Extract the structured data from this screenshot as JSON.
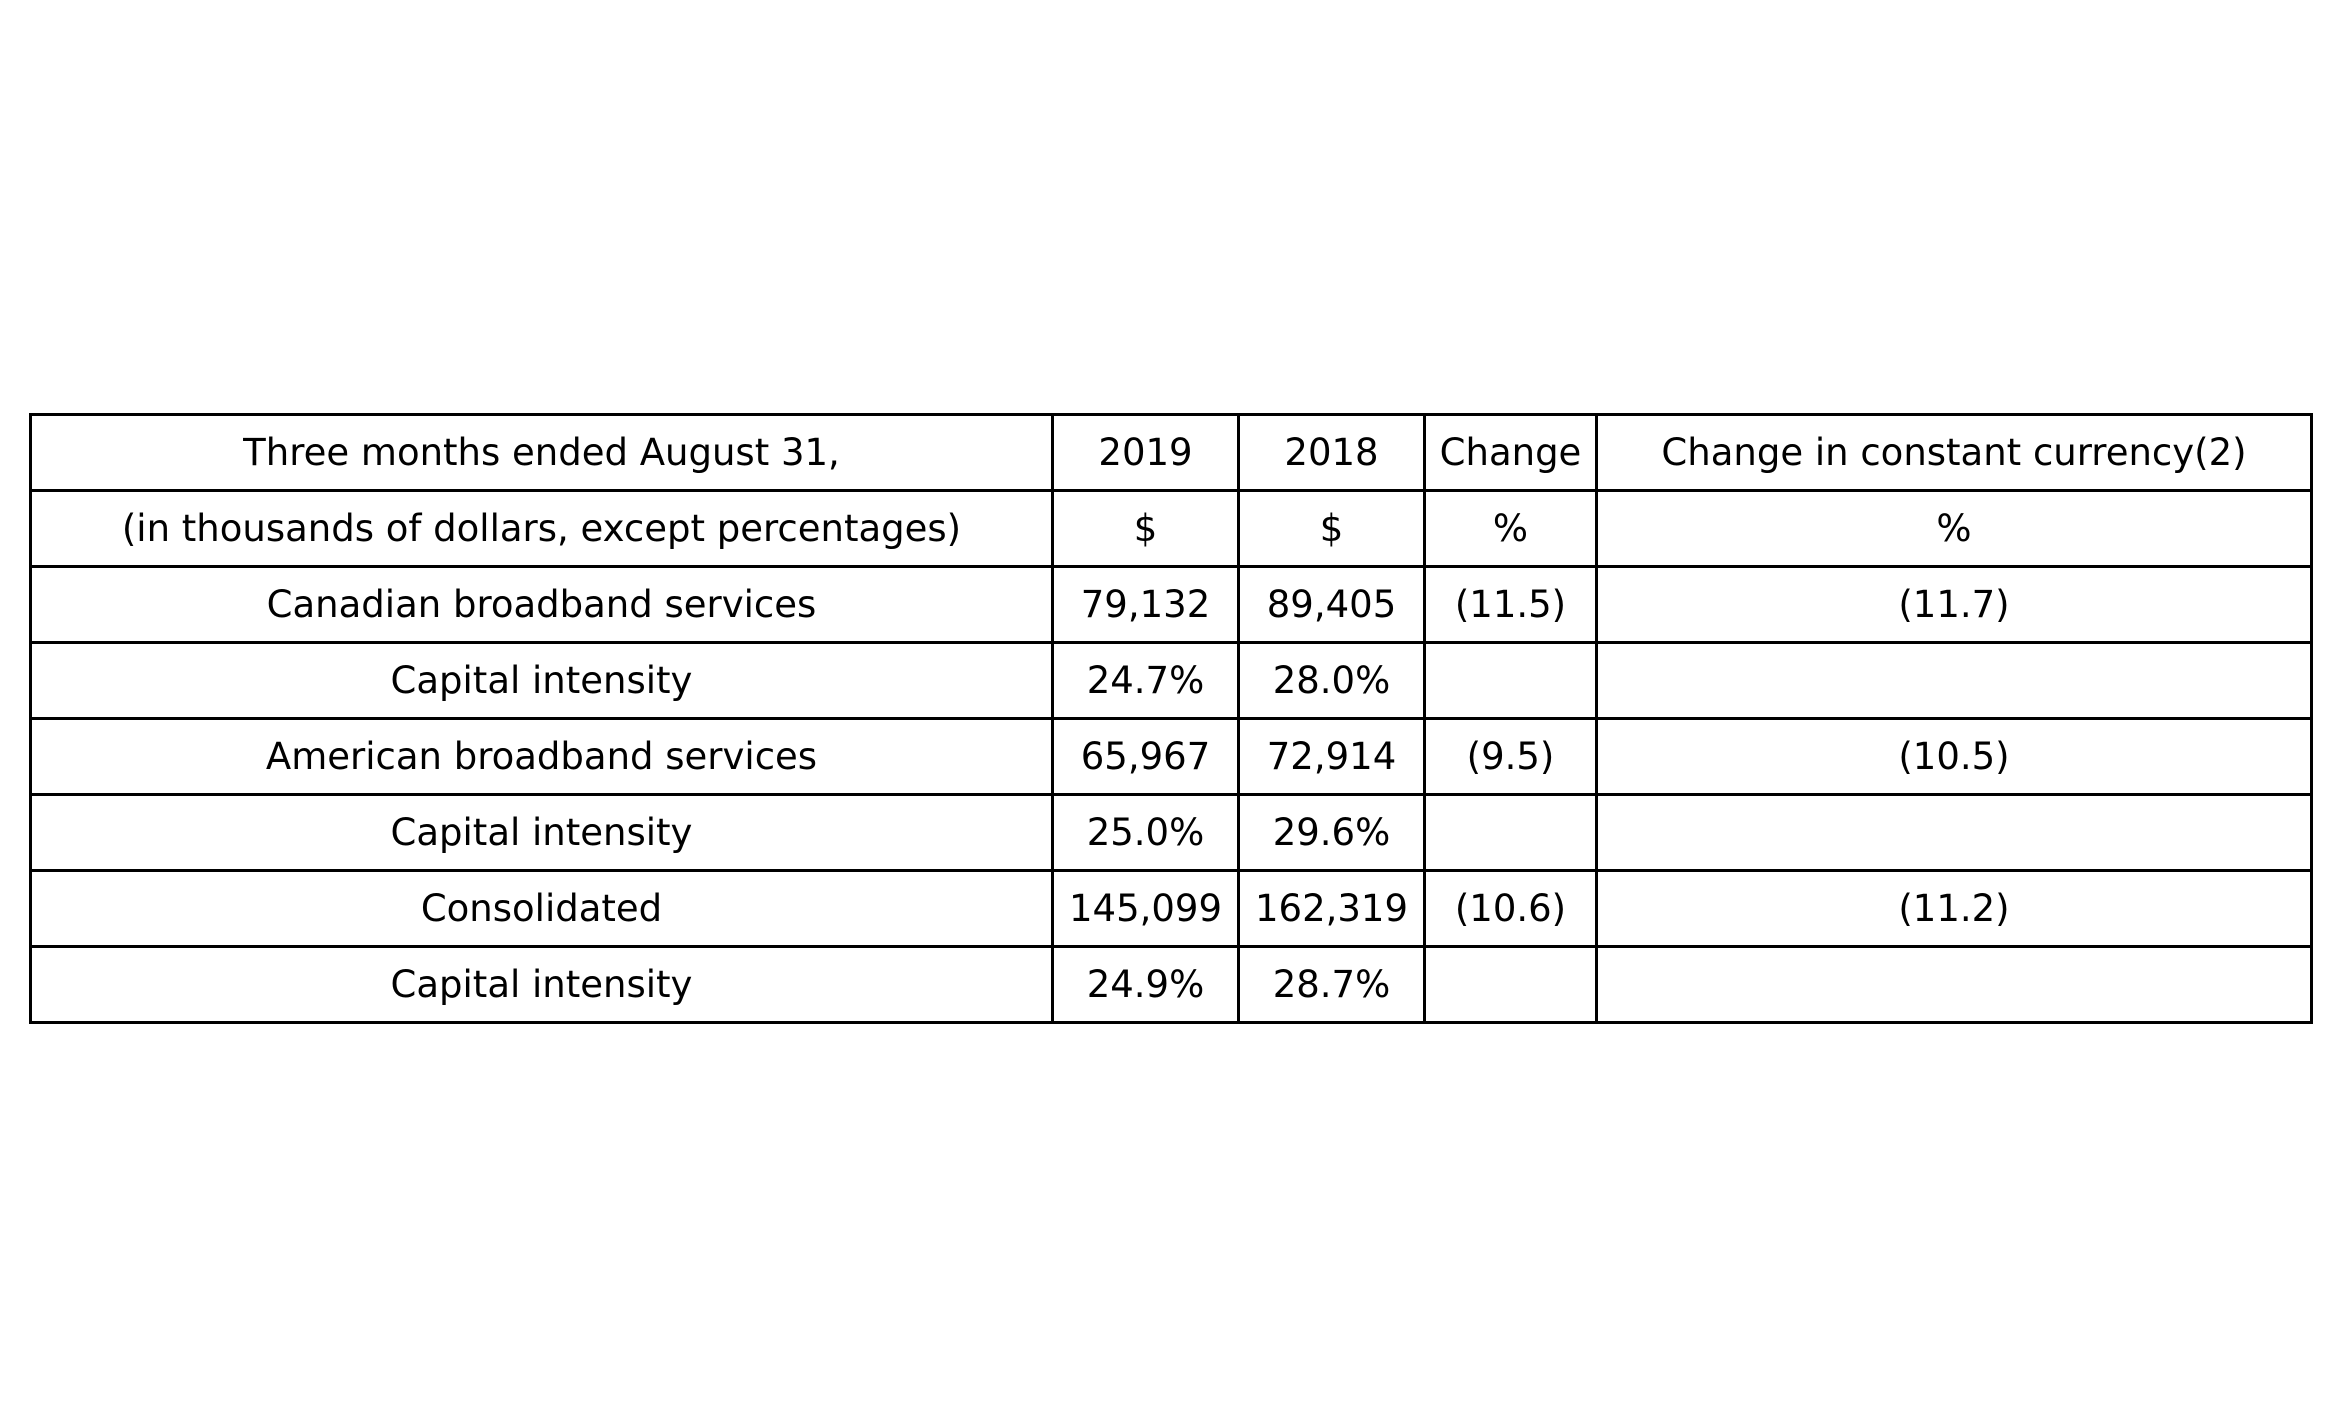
{
  "chart_data": {
    "type": "table",
    "columns": [
      "Three months ended August 31,",
      "2019",
      "2018",
      "Change",
      "Change in constant currency(2)"
    ],
    "rows": [
      [
        "(in thousands of dollars, except percentages)",
        "$",
        "$",
        "%",
        "%"
      ],
      [
        "Canadian broadband services",
        "79,132",
        "89,405",
        "(11.5)",
        "(11.7)"
      ],
      [
        "Capital intensity",
        "24.7%",
        "28.0%",
        "",
        ""
      ],
      [
        "American broadband services",
        "65,967",
        "72,914",
        "(9.5)",
        "(10.5)"
      ],
      [
        "Capital intensity",
        "25.0%",
        "29.6%",
        "",
        ""
      ],
      [
        "Consolidated",
        "145,099",
        "162,319",
        "(10.6)",
        "(11.2)"
      ],
      [
        "Capital intensity",
        "24.9%",
        "28.7%",
        "",
        ""
      ]
    ]
  }
}
